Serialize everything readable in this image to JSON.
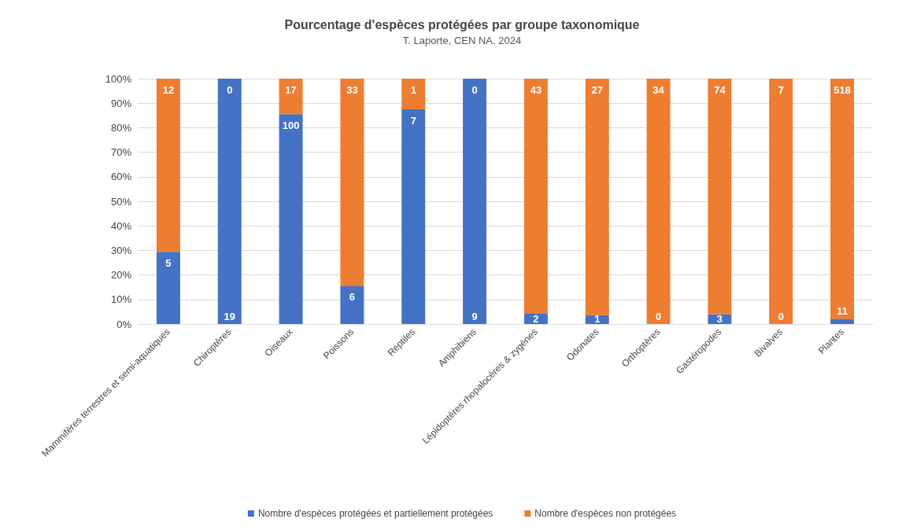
{
  "chart_data": {
    "type": "bar",
    "title": "Pourcentage d'espèces protégées par groupe taxonomique",
    "subtitle": "T. Laporte, CEN NA, 2024",
    "categories": [
      "Mammifères terrestres et semi-aquatiques",
      "Chiroptères",
      "Oiseaux",
      "Poissons",
      "Reptiles",
      "Amphibiens",
      "Lépidoptères rhopalocères & zygènes",
      "Odonates",
      "Orthoptères",
      "Gastéropodes",
      "Bivalves",
      "Plantes"
    ],
    "series": [
      {
        "name": "Nombre d'espèces protégées et partiellement protégées",
        "color": "#4472c4",
        "values": [
          29.4,
          100,
          85.5,
          15.4,
          87.5,
          100,
          4.4,
          3.6,
          0,
          3.9,
          0,
          2.1
        ]
      },
      {
        "name": "Nombre d'espèces non protégées",
        "color": "#ed7d31",
        "values": [
          70.6,
          0,
          14.5,
          84.6,
          12.5,
          0,
          95.6,
          96.4,
          100,
          96.1,
          100,
          97.9
        ]
      }
    ],
    "annotations": [
      {
        "text": "5",
        "x": "Mammifères terrestres et semi-aquatiques",
        "y": 29.4
      },
      {
        "text": "12",
        "x": "Mammifères terrestres et semi-aquatiques",
        "y": 100
      },
      {
        "text": "19",
        "x": "Chiroptères",
        "y": 0
      },
      {
        "text": "0",
        "x": "Chiroptères",
        "y": 100
      },
      {
        "text": "100",
        "x": "Oiseaux",
        "y": 85.5
      },
      {
        "text": "17",
        "x": "Oiseaux",
        "y": 100
      },
      {
        "text": "6",
        "x": "Poissons",
        "y": 15.4
      },
      {
        "text": "33",
        "x": "Poissons",
        "y": 100
      },
      {
        "text": "7",
        "x": "Reptiles",
        "y": 87.5
      },
      {
        "text": "1",
        "x": "Reptiles",
        "y": 100
      },
      {
        "text": "9",
        "x": "Amphibiens",
        "y": 0
      },
      {
        "text": "0",
        "x": "Amphibiens",
        "y": 100
      },
      {
        "text": "2",
        "x": "Lépidoptères rhopalocères & zygènes",
        "y": 4.4
      },
      {
        "text": "43",
        "x": "Lépidoptères rhopalocères & zygènes",
        "y": 100
      },
      {
        "text": "1",
        "x": "Odonates",
        "y": 3.6
      },
      {
        "text": "27",
        "x": "Odonates",
        "y": 100
      },
      {
        "text": "0",
        "x": "Orthoptères",
        "y": 0
      },
      {
        "text": "34",
        "x": "Orthoptères",
        "y": 100
      },
      {
        "text": "3",
        "x": "Gastéropodes",
        "y": 3.9
      },
      {
        "text": "74",
        "x": "Gastéropodes",
        "y": 100
      },
      {
        "text": "0",
        "x": "Bivalves",
        "y": 0
      },
      {
        "text": "7",
        "x": "Bivalves",
        "y": 100
      },
      {
        "text": "11",
        "x": "Plantes",
        "y": 2.1
      },
      {
        "text": "518",
        "x": "Plantes",
        "y": 100
      }
    ],
    "stacked": true,
    "ylim": [
      0,
      100
    ],
    "yticks": [
      {
        "value": 0,
        "label": "0%"
      },
      {
        "value": 10,
        "label": "10%"
      },
      {
        "value": 20,
        "label": "20%"
      },
      {
        "value": 30,
        "label": "30%"
      },
      {
        "value": 40,
        "label": "40%"
      },
      {
        "value": 50,
        "label": "50%"
      },
      {
        "value": 60,
        "label": "60%"
      },
      {
        "value": 70,
        "label": "70%"
      },
      {
        "value": 80,
        "label": "80%"
      },
      {
        "value": 90,
        "label": "90%"
      },
      {
        "value": 100,
        "label": "100%"
      }
    ],
    "grid": "y",
    "legend": "bottom"
  }
}
